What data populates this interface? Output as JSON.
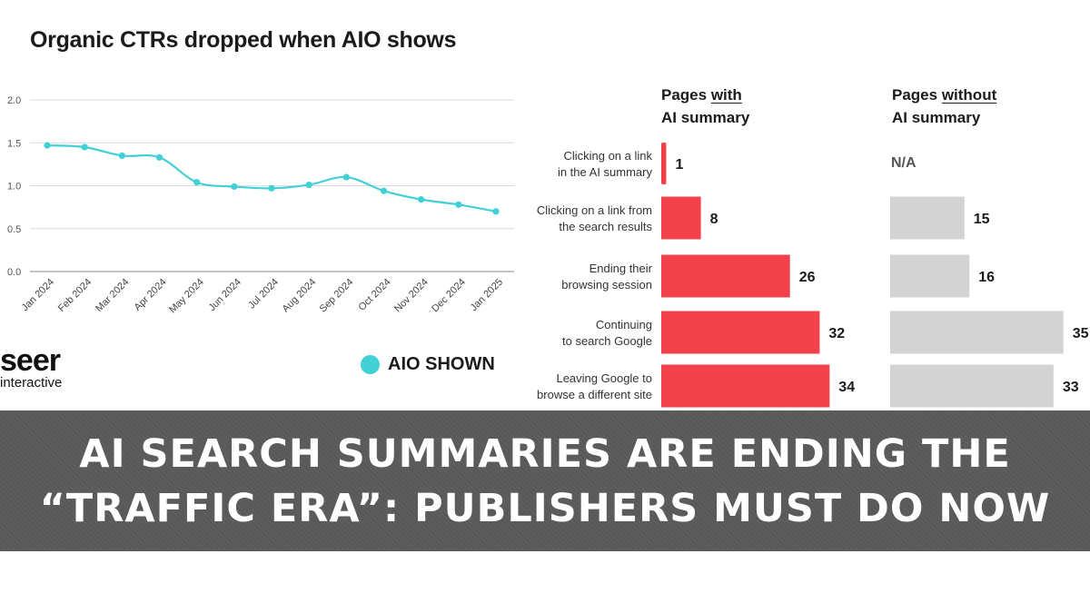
{
  "chart_data": [
    {
      "type": "line",
      "title": "Organic CTRs dropped when AIO shows",
      "categories": [
        "Jan 2024",
        "Feb 2024",
        "Mar 2024",
        "Apr 2024",
        "May 2024",
        "Jun 2024",
        "Jul 2024",
        "Aug 2024",
        "Sep 2024",
        "Oct 2024",
        "Nov 2024",
        "Dec 2024",
        "Jan 2025"
      ],
      "series": [
        {
          "name": "AIO SHOWN",
          "values": [
            1.47,
            1.45,
            1.35,
            1.33,
            1.04,
            0.99,
            0.97,
            1.01,
            1.1,
            0.94,
            0.84,
            0.78,
            0.7
          ]
        }
      ],
      "ylim": [
        0,
        2.0
      ],
      "yticks": [
        "0.0",
        "0.5",
        "1.0",
        "1.5",
        "2.0"
      ],
      "grid": true,
      "legend": "bottom-right",
      "color": "#40d0d6"
    },
    {
      "type": "bar",
      "orientation": "horizontal",
      "categories": [
        [
          "Clicking on a link",
          "in the AI summary"
        ],
        [
          "Clicking on a link from",
          "the search results"
        ],
        [
          "Ending their",
          "browsing session"
        ],
        [
          "Continuing",
          "to search Google"
        ],
        [
          "Leaving Google to",
          "browse a different site"
        ]
      ],
      "series": [
        {
          "values": [
            1,
            8,
            26,
            32,
            34
          ],
          "color": "#f2414b"
        },
        {
          "values": [
            null,
            15,
            16,
            35,
            33
          ],
          "color": "#d3d3d3"
        }
      ]
    }
  ],
  "panels": {
    "with": {
      "line1": "Pages ",
      "line1_u": "with",
      "line2": "AI summary"
    },
    "without": {
      "line1": "Pages ",
      "line1_u": "without",
      "line2": "AI summary"
    },
    "na": "N/A"
  },
  "logo": {
    "main": "seer",
    "sub": "interactive"
  },
  "banner": {
    "line1": "AI SEARCH SUMMARIES ARE ENDING THE",
    "line2": "“TRAFFIC ERA”: PUBLISHERS MUST DO NOW"
  }
}
